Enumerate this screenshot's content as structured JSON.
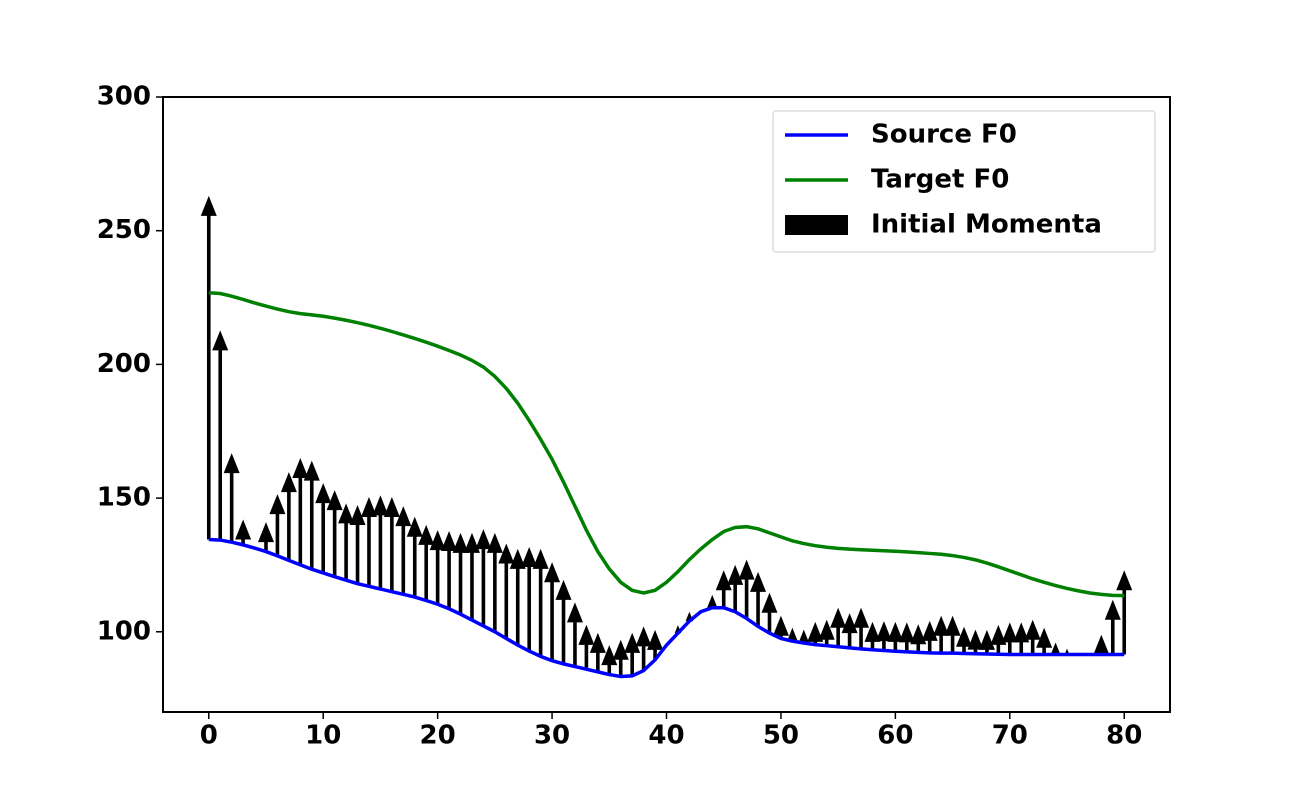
{
  "chart_data": {
    "type": "line-quiver",
    "x": [
      0,
      1,
      2,
      3,
      4,
      5,
      6,
      7,
      8,
      9,
      10,
      11,
      12,
      13,
      14,
      15,
      16,
      17,
      18,
      19,
      20,
      21,
      22,
      23,
      24,
      25,
      26,
      27,
      28,
      29,
      30,
      31,
      32,
      33,
      34,
      35,
      36,
      37,
      38,
      39,
      40,
      41,
      42,
      43,
      44,
      45,
      46,
      47,
      48,
      49,
      50,
      51,
      52,
      53,
      54,
      55,
      56,
      57,
      58,
      59,
      60,
      61,
      62,
      63,
      64,
      65,
      66,
      67,
      68,
      69,
      70,
      71,
      72,
      73,
      74,
      75,
      76,
      77,
      78,
      79,
      80
    ],
    "series": [
      {
        "name": "Source F0",
        "color": "#0000ff",
        "kind": "line",
        "values": [
          134.5,
          134.3,
          133.5,
          132.5,
          131.3,
          130,
          128.4,
          126.7,
          125,
          123.4,
          122,
          120.6,
          119.3,
          118,
          117,
          116,
          115,
          114,
          113,
          111.7,
          110.3,
          108.6,
          106.6,
          104.4,
          102.2,
          100,
          97.5,
          95,
          92.8,
          90.8,
          89.2,
          88,
          87,
          86,
          85,
          84,
          83.3,
          83.5,
          85.5,
          89.5,
          95,
          99.5,
          104,
          107.5,
          109,
          109,
          107.5,
          105,
          102,
          99.5,
          97.5,
          96.5,
          95.8,
          95.2,
          94.8,
          94.4,
          94,
          93.6,
          93.3,
          93,
          92.7,
          92.5,
          92.3,
          92.1,
          92,
          92,
          91.9,
          91.8,
          91.7,
          91.6,
          91.5,
          91.5,
          91.5,
          91.5,
          91.5,
          91.5,
          91.5,
          91.5,
          91.5,
          91.5,
          91.5
        ]
      },
      {
        "name": "Target F0",
        "color": "#008000",
        "kind": "line",
        "values": [
          226.8,
          226.5,
          225.5,
          224.3,
          223,
          221.8,
          220.7,
          219.7,
          219,
          218.5,
          218,
          217.3,
          216.5,
          215.6,
          214.6,
          213.5,
          212.3,
          211,
          209.7,
          208.3,
          206.8,
          205.2,
          203.5,
          201.5,
          199,
          195.5,
          191,
          185.5,
          179,
          172,
          164.5,
          156,
          147,
          138,
          130,
          123.5,
          118.5,
          115.5,
          114.5,
          115.5,
          118.5,
          122.5,
          127,
          131,
          134.5,
          137.5,
          139,
          139.3,
          138.5,
          137,
          135.5,
          134,
          133,
          132.2,
          131.6,
          131.2,
          130.9,
          130.7,
          130.5,
          130.3,
          130.1,
          129.9,
          129.6,
          129.3,
          129,
          128.5,
          127.8,
          126.9,
          125.7,
          124.3,
          122.8,
          121.3,
          119.8,
          118.5,
          117.3,
          116.2,
          115.3,
          114.5,
          114,
          113.6,
          113.5
        ]
      },
      {
        "name": "Initial Momenta",
        "color": "#000000",
        "kind": "quiver",
        "values": [
          128.5,
          78.4,
          33.3,
          9.5,
          0,
          11,
          23.1,
          33,
          40,
          40.6,
          33.6,
          32.4,
          28.7,
          29.4,
          33.4,
          35,
          35.4,
          33,
          30,
          28.3,
          27.7,
          29.1,
          30.4,
          32.6,
          36.2,
          37,
          35.5,
          36,
          38.9,
          40.2,
          36.8,
          31.4,
          24,
          16.6,
          14.6,
          11,
          13.7,
          16.1,
          16.5,
          11.2,
          0,
          3,
          3.5,
          0,
          4.8,
          14,
          17.5,
          22,
          20.4,
          15.1,
          8.5,
          5,
          5,
          8.5,
          9.7,
          14.6,
          13,
          15.4,
          10.4,
          11,
          11,
          11,
          10.5,
          12,
          14,
          14,
          10,
          9,
          9,
          11,
          12,
          12,
          13,
          10,
          4.5,
          2.2,
          0,
          0,
          7.4,
          20.5,
          31.5
        ]
      }
    ],
    "xlim": [
      -4,
      84
    ],
    "ylim": [
      70,
      300
    ],
    "xticks": [
      0,
      10,
      20,
      30,
      40,
      50,
      60,
      70,
      80
    ],
    "yticks": [
      100,
      150,
      200,
      250,
      300
    ],
    "legend": "upper right"
  }
}
